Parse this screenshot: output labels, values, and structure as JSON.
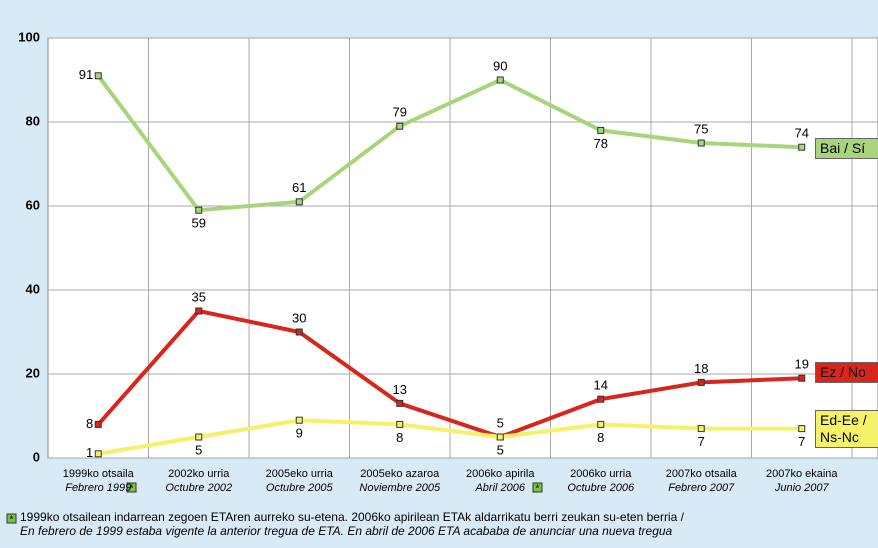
{
  "chart_data": {
    "type": "line",
    "categories": [
      [
        "1999ko otsaila",
        "Febrero 1999"
      ],
      [
        "2002ko urria",
        "Octubre 2002"
      ],
      [
        "2005eko urria",
        "Octubre 2005"
      ],
      [
        "2005eko azaroa",
        "Noviembre 2005"
      ],
      [
        "2006ko apirila",
        "Abril 2006"
      ],
      [
        "2006ko urria",
        "Octubre 2006"
      ],
      [
        "2007ko otsaila",
        "Febrero 2007"
      ],
      [
        "2007ko ekaina",
        "Junio 2007"
      ]
    ],
    "series": [
      {
        "name": "Bai / Sí",
        "color": "#a9d47c",
        "values": [
          91,
          59,
          61,
          79,
          90,
          78,
          75,
          74
        ]
      },
      {
        "name": "Ez / No",
        "color": "#d9261c",
        "values": [
          8,
          35,
          30,
          13,
          5,
          14,
          18,
          19
        ]
      },
      {
        "name": "Ed-Ee / Ns-Nc",
        "color": "#f6f268",
        "values": [
          1,
          5,
          9,
          8,
          5,
          8,
          7,
          7
        ]
      }
    ],
    "ylim": [
      0,
      100
    ],
    "yticks": [
      0,
      20,
      40,
      60,
      80,
      100
    ],
    "grid": true,
    "footnote": [
      "1999ko otsailean indarrean zegoen ETAren aurreko su-etena. 2006ko apirilean ETAk aldarrikatu berri zeukan su-eten berria /",
      "En febrero de 1999 estaba vigente la anterior tregua de ETA. En abril  de 2006 ETA acababa de anunciar una nueva tregua"
    ]
  }
}
